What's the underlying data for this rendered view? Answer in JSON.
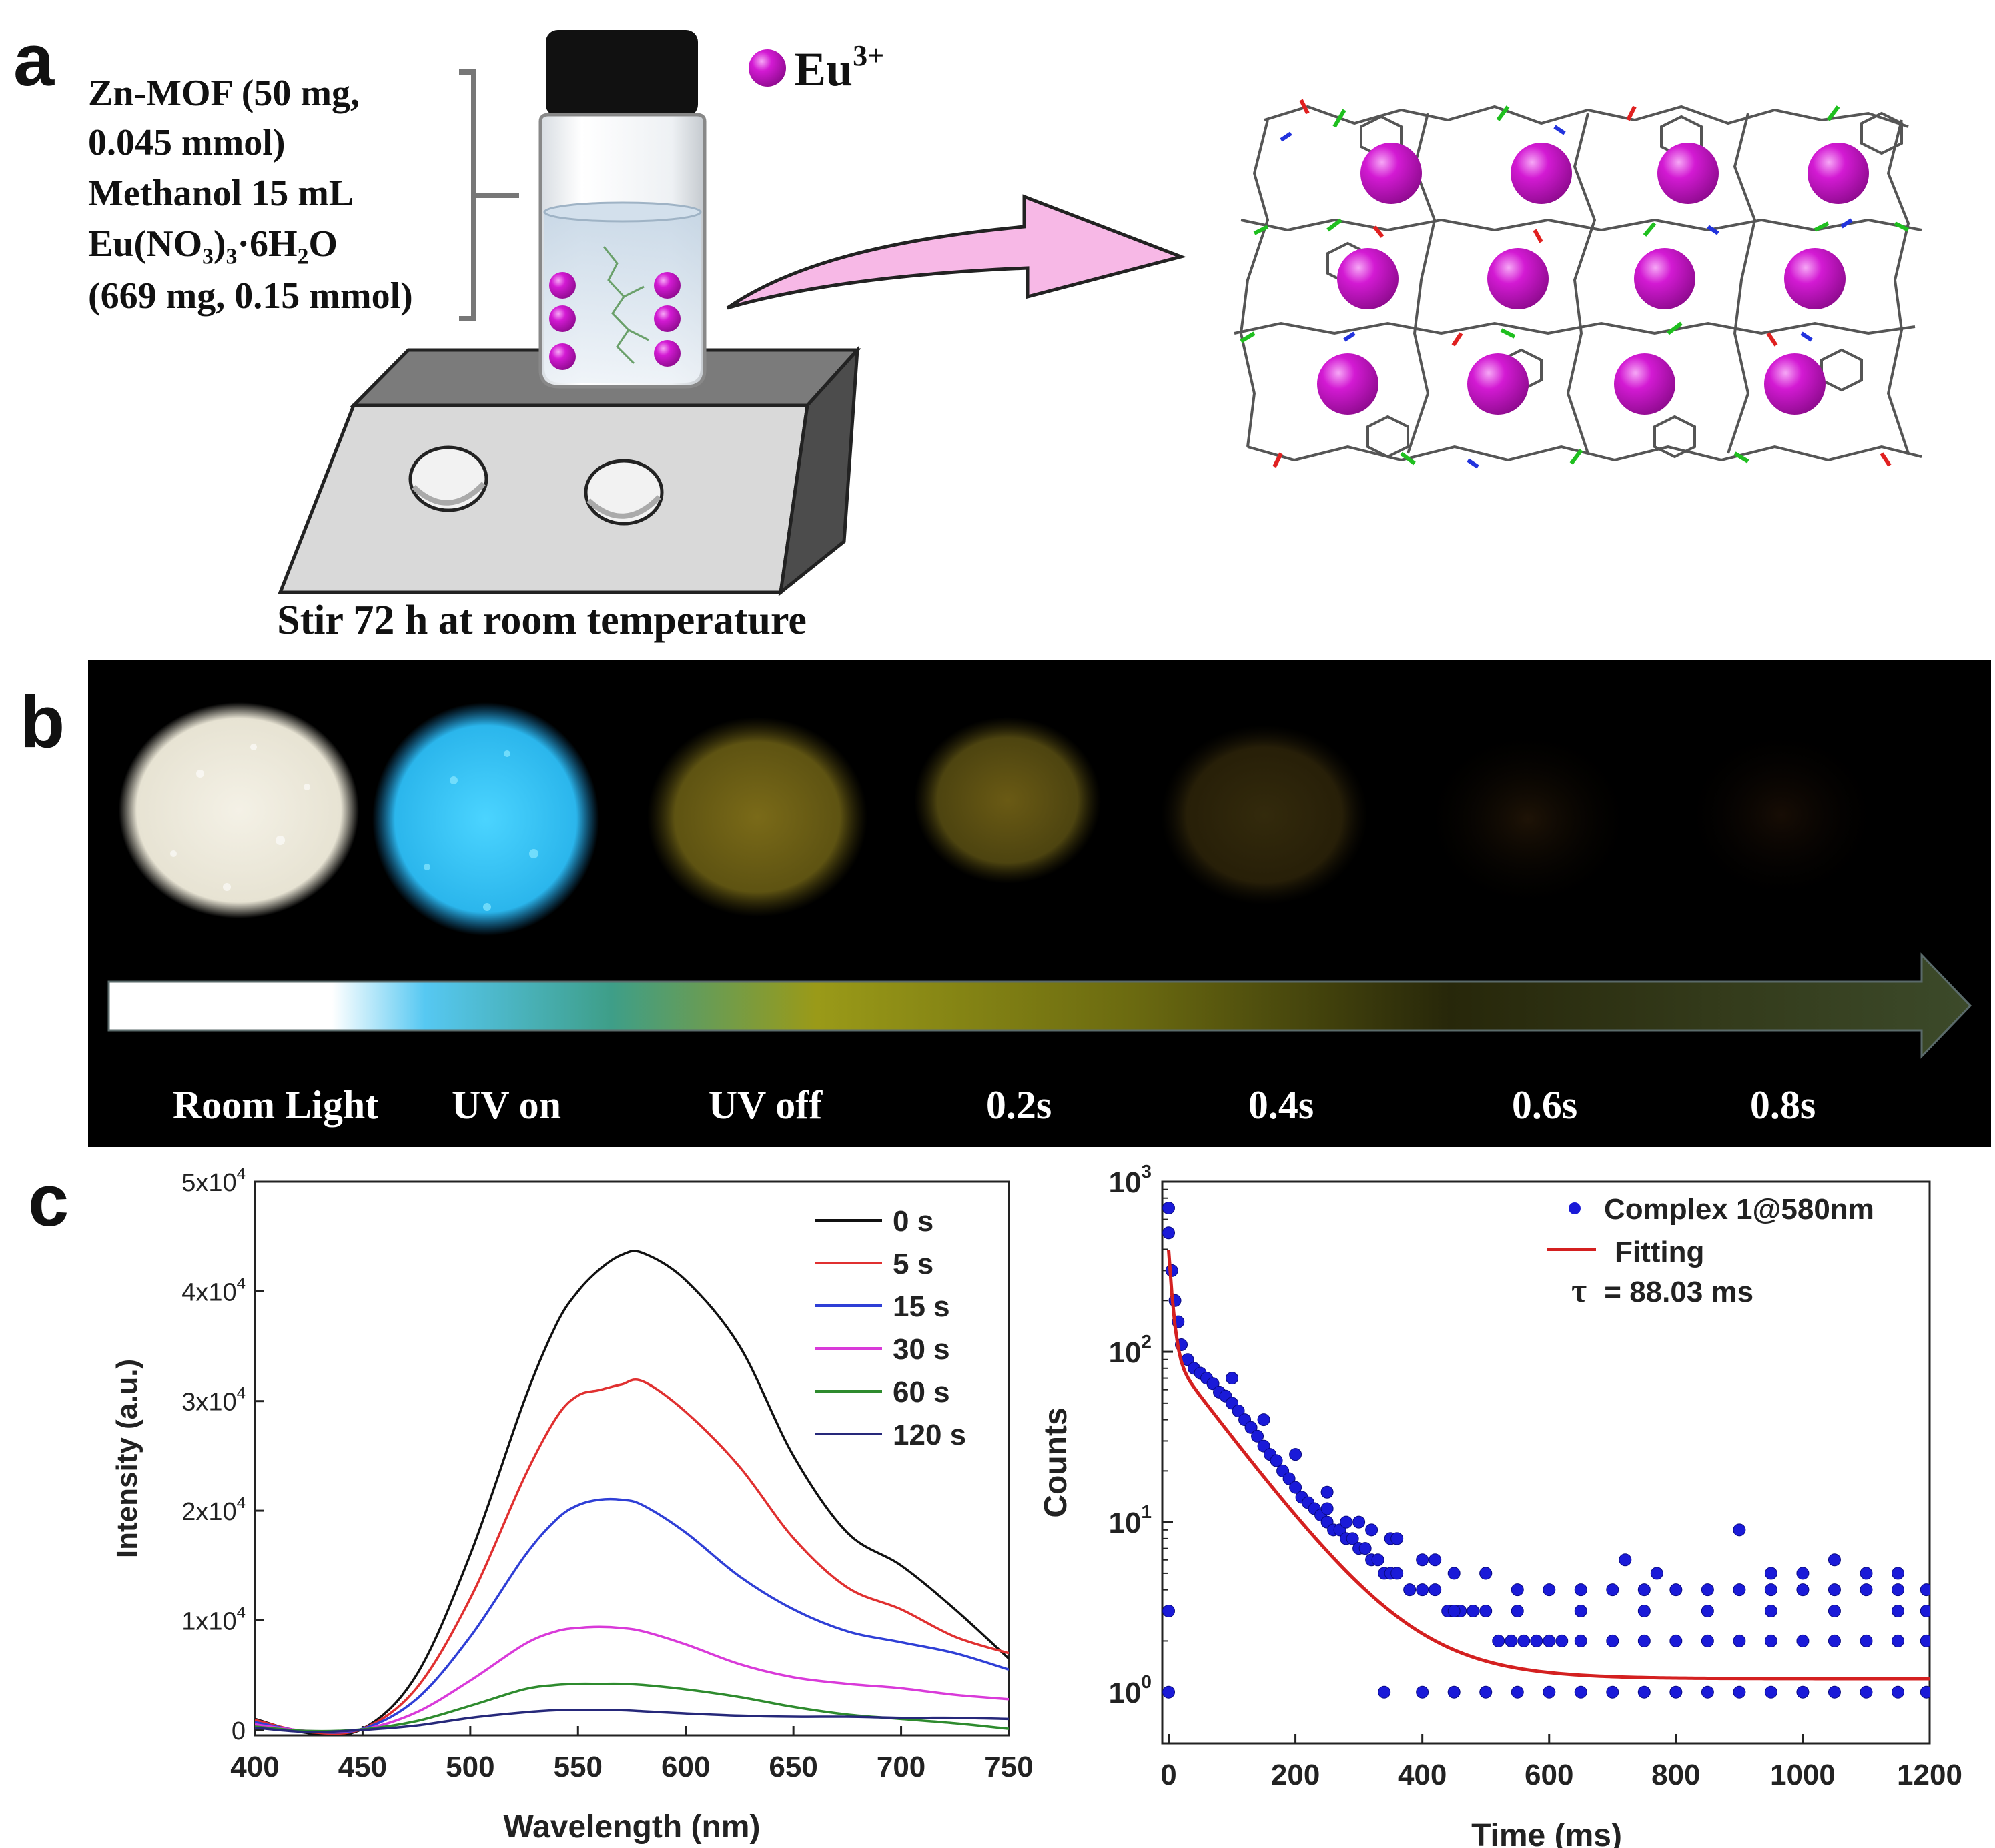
{
  "figure": {
    "panel_labels": {
      "a": "a",
      "b": "b",
      "c": "c"
    }
  },
  "panel_a": {
    "recipe_lines": [
      "Zn-MOF  (50 mg,",
      "0.045 mmol)",
      "Methanol  15 mL",
      "Eu(NO₃)₃·6H₂O",
      "(669 mg, 0.15 mmol)"
    ],
    "ion_legend_base": "Eu",
    "ion_legend_sup": "3+",
    "caption": "Stir 72 h at room temperature",
    "colors": {
      "eu_sphere": "#cc10cc",
      "arrow_fill": "#f7b8e6",
      "cap": "#111111",
      "stirrer_top": "#7a7a7a"
    }
  },
  "panel_b": {
    "stage_labels": [
      "Room Light",
      "UV on",
      "UV off",
      "0.2s",
      "0.4s",
      "0.6s",
      "0.8s"
    ],
    "colors": {
      "room_light": "#eeeade",
      "uv_on": "#3ec8f2",
      "uv_off": "#6e6114",
      "background": "#000000"
    }
  },
  "chart_data": [
    {
      "type": "line",
      "xlabel": "Wavelength (nm)",
      "ylabel": "Intensity (a.u.)",
      "xlim": [
        400,
        750
      ],
      "ylim": [
        -500,
        50000
      ],
      "xticks": [
        400,
        450,
        500,
        550,
        600,
        650,
        700,
        750
      ],
      "yticks": [
        0,
        10000,
        20000,
        30000,
        40000,
        50000
      ],
      "ytick_labels": [
        {
          "base": "0",
          "exp": ""
        },
        {
          "base": "1x10",
          "exp": "4"
        },
        {
          "base": "2x10",
          "exp": "4"
        },
        {
          "base": "3x10",
          "exp": "4"
        },
        {
          "base": "4x10",
          "exp": "4"
        },
        {
          "base": "5x10",
          "exp": "4"
        }
      ],
      "legend_position": "top-right",
      "x": [
        400,
        425,
        450,
        475,
        500,
        525,
        540,
        550,
        560,
        570,
        580,
        600,
        625,
        650,
        675,
        700,
        725,
        750
      ],
      "series": [
        {
          "name": "0 s",
          "color": "#111111",
          "values": [
            1000,
            -300,
            100,
            5000,
            16000,
            30000,
            37000,
            40000,
            42000,
            43300,
            43500,
            41000,
            35000,
            25000,
            18000,
            15000,
            11000,
            6500
          ]
        },
        {
          "name": "5 s",
          "color": "#e03030",
          "values": [
            900,
            -200,
            100,
            3800,
            12000,
            23000,
            28500,
            30500,
            31000,
            31500,
            31800,
            29000,
            24000,
            17500,
            13000,
            11000,
            8500,
            7000
          ]
        },
        {
          "name": "15 s",
          "color": "#2f3fd6",
          "values": [
            700,
            -150,
            100,
            2800,
            8500,
            15800,
            19200,
            20500,
            21000,
            21000,
            20500,
            18000,
            14000,
            11000,
            9000,
            8000,
            7000,
            5500
          ]
        },
        {
          "name": "30 s",
          "color": "#d93ad9",
          "values": [
            500,
            -100,
            50,
            1600,
            4500,
            7800,
            9000,
            9300,
            9400,
            9300,
            9000,
            7800,
            6000,
            4800,
            4200,
            3800,
            3200,
            2800
          ]
        },
        {
          "name": "60 s",
          "color": "#2e8b2e",
          "values": [
            300,
            -100,
            50,
            800,
            2200,
            3700,
            4100,
            4200,
            4200,
            4200,
            4100,
            3700,
            3000,
            2100,
            1400,
            1000,
            600,
            100
          ]
        },
        {
          "name": "120 s",
          "color": "#26287a",
          "values": [
            200,
            -200,
            0,
            400,
            1100,
            1600,
            1800,
            1800,
            1800,
            1800,
            1700,
            1500,
            1300,
            1200,
            1200,
            1100,
            1100,
            1000
          ]
        }
      ]
    },
    {
      "type": "scatter",
      "xlabel": "Time (ms)",
      "ylabel": "Counts",
      "xlim": [
        -10,
        1200
      ],
      "ylim": [
        0.5,
        1000
      ],
      "yscale": "log",
      "xticks": [
        0,
        200,
        400,
        600,
        800,
        1000,
        1200
      ],
      "ytick_labels": [
        {
          "value": 1,
          "base": "10",
          "exp": "0"
        },
        {
          "value": 10,
          "base": "10",
          "exp": "1"
        },
        {
          "value": 100,
          "base": "10",
          "exp": "2"
        },
        {
          "value": 1000,
          "base": "10",
          "exp": "3"
        }
      ],
      "legend_position": "top-right",
      "series": [
        {
          "name": "Complex 1@580nm",
          "color": "#1a1ad8",
          "points": [
            [
              0,
              700
            ],
            [
              0,
              500
            ],
            [
              0,
              3
            ],
            [
              0,
              1
            ],
            [
              5,
              300
            ],
            [
              10,
              200
            ],
            [
              15,
              150
            ],
            [
              20,
              110
            ],
            [
              30,
              90
            ],
            [
              40,
              80
            ],
            [
              50,
              75
            ],
            [
              60,
              70
            ],
            [
              70,
              65
            ],
            [
              80,
              58
            ],
            [
              90,
              55
            ],
            [
              100,
              50
            ],
            [
              110,
              45
            ],
            [
              120,
              40
            ],
            [
              130,
              36
            ],
            [
              140,
              32
            ],
            [
              150,
              28
            ],
            [
              160,
              25
            ],
            [
              170,
              23
            ],
            [
              180,
              20
            ],
            [
              190,
              18
            ],
            [
              200,
              16
            ],
            [
              210,
              14
            ],
            [
              220,
              13
            ],
            [
              230,
              12
            ],
            [
              240,
              11
            ],
            [
              250,
              10
            ],
            [
              260,
              9
            ],
            [
              270,
              9
            ],
            [
              280,
              8
            ],
            [
              290,
              8
            ],
            [
              300,
              7
            ],
            [
              310,
              7
            ],
            [
              320,
              6
            ],
            [
              330,
              6
            ],
            [
              340,
              5
            ],
            [
              350,
              5
            ],
            [
              360,
              5
            ],
            [
              380,
              4
            ],
            [
              400,
              4
            ],
            [
              420,
              4
            ],
            [
              440,
              3
            ],
            [
              460,
              3
            ],
            [
              480,
              3
            ],
            [
              500,
              3
            ],
            [
              520,
              2
            ],
            [
              540,
              2
            ],
            [
              560,
              2
            ],
            [
              580,
              2
            ],
            [
              600,
              2
            ],
            [
              620,
              2
            ],
            [
              650,
              2
            ],
            [
              700,
              2
            ],
            [
              750,
              2
            ],
            [
              800,
              2
            ],
            [
              850,
              2
            ],
            [
              900,
              2
            ],
            [
              950,
              2
            ],
            [
              1000,
              2
            ],
            [
              1050,
              2
            ],
            [
              1100,
              2
            ],
            [
              1150,
              2
            ],
            [
              1195,
              2
            ],
            [
              100,
              70
            ],
            [
              150,
              40
            ],
            [
              200,
              25
            ],
            [
              250,
              15
            ],
            [
              300,
              10
            ],
            [
              350,
              8
            ],
            [
              400,
              6
            ],
            [
              450,
              5
            ],
            [
              500,
              5
            ],
            [
              550,
              4
            ],
            [
              600,
              4
            ],
            [
              650,
              4
            ],
            [
              700,
              4
            ],
            [
              750,
              4
            ],
            [
              800,
              4
            ],
            [
              850,
              4
            ],
            [
              900,
              4
            ],
            [
              950,
              4
            ],
            [
              1000,
              4
            ],
            [
              1050,
              4
            ],
            [
              1100,
              4
            ],
            [
              1150,
              4
            ],
            [
              1195,
              4
            ],
            [
              450,
              3
            ],
            [
              550,
              3
            ],
            [
              650,
              3
            ],
            [
              750,
              3
            ],
            [
              850,
              3
            ],
            [
              950,
              3
            ],
            [
              1050,
              3
            ],
            [
              1150,
              3
            ],
            [
              1195,
              3
            ],
            [
              340,
              1
            ],
            [
              400,
              1
            ],
            [
              450,
              1
            ],
            [
              500,
              1
            ],
            [
              550,
              1
            ],
            [
              600,
              1
            ],
            [
              650,
              1
            ],
            [
              700,
              1
            ],
            [
              750,
              1
            ],
            [
              800,
              1
            ],
            [
              850,
              1
            ],
            [
              900,
              1
            ],
            [
              950,
              1
            ],
            [
              1000,
              1
            ],
            [
              1050,
              1
            ],
            [
              1100,
              1
            ],
            [
              1150,
              1
            ],
            [
              1195,
              1
            ],
            [
              720,
              6
            ],
            [
              770,
              5
            ],
            [
              900,
              9
            ],
            [
              950,
              5
            ],
            [
              1000,
              5
            ],
            [
              1050,
              6
            ],
            [
              1100,
              5
            ],
            [
              1150,
              5
            ],
            [
              250,
              12
            ],
            [
              280,
              10
            ],
            [
              320,
              9
            ],
            [
              360,
              8
            ],
            [
              420,
              6
            ],
            [
              500,
              5
            ]
          ]
        },
        {
          "name": "Fitting",
          "color": "#d42020",
          "fit": {
            "A1": 300,
            "t1": 6,
            "A2": 95,
            "t2": 88.03,
            "y0": 1.2
          }
        }
      ],
      "annotation": {
        "symbol": "τ",
        "text": " = 88.03 ms"
      }
    }
  ]
}
